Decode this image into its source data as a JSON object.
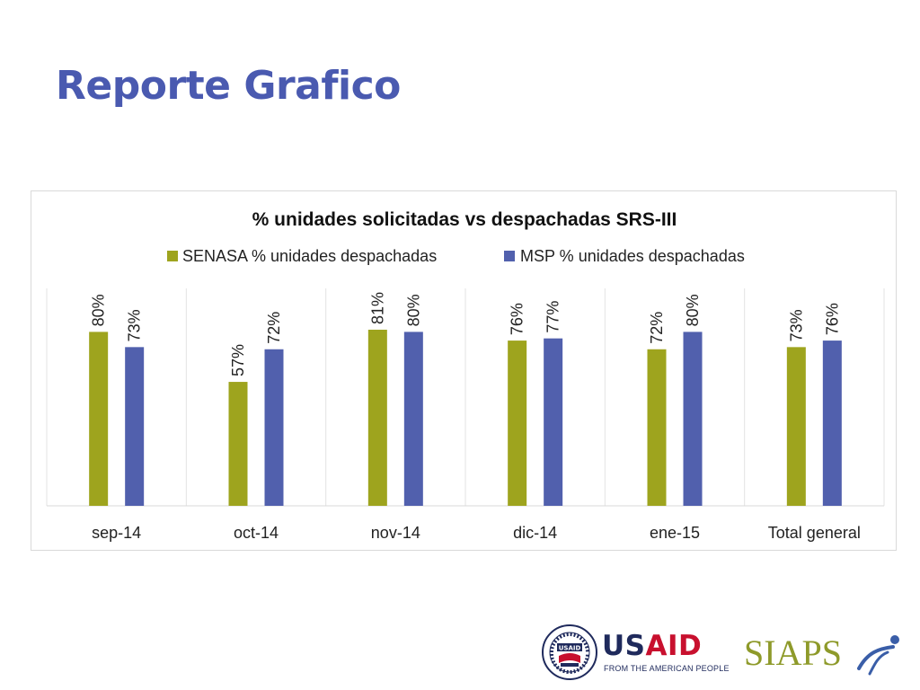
{
  "slide": {
    "title": "Reporte Grafico"
  },
  "colors": {
    "title": "#4a5ab0",
    "senasa": "#9ea41e",
    "msp": "#5160ad",
    "usaid_blue": "#1f2a5c",
    "usaid_red": "#c8102e",
    "siaps_green": "#8e9a2a"
  },
  "chart_data": {
    "type": "bar",
    "title": "% unidades solicitadas vs despachadas SRS-III",
    "xlabel": "",
    "ylabel": "",
    "ylim": [
      0,
      100
    ],
    "grid": "vertical category separators",
    "legend_position": "top",
    "categories": [
      "sep-14",
      "oct-14",
      "nov-14",
      "dic-14",
      "ene-15",
      "Total general"
    ],
    "series": [
      {
        "name": "SENASA % unidades despachadas",
        "values": [
          80,
          57,
          81,
          76,
          72,
          73
        ],
        "labels": [
          "80%",
          "57%",
          "81%",
          "76%",
          "72%",
          "73%"
        ]
      },
      {
        "name": "MSP % unidades despachadas",
        "values": [
          73,
          72,
          80,
          77,
          80,
          76
        ],
        "labels": [
          "73%",
          "72%",
          "80%",
          "77%",
          "80%",
          "76%"
        ]
      }
    ]
  },
  "footer": {
    "usaid": {
      "word": "USAID",
      "tagline": "FROM THE AMERICAN PEOPLE",
      "seal_text": "USAID"
    },
    "siaps": {
      "word": "SIAPS"
    }
  }
}
